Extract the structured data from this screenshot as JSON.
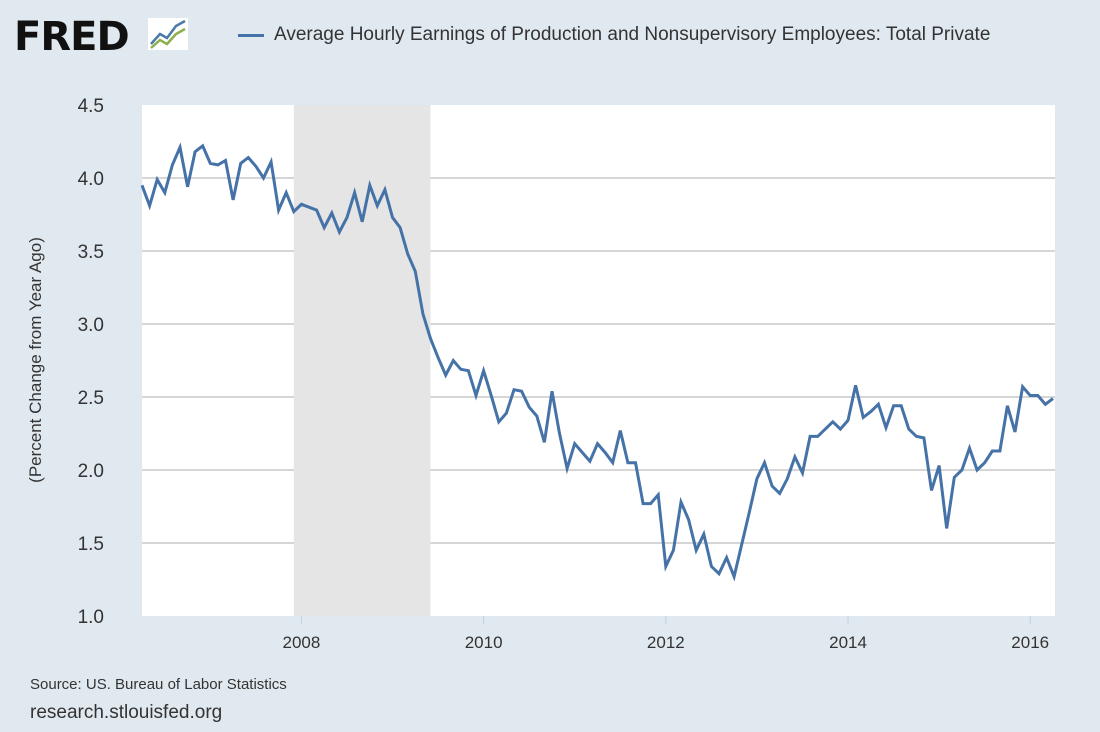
{
  "header": {
    "logo_text": "FRED",
    "logo_icon": "line-chart-icon"
  },
  "chart_data": {
    "type": "line",
    "title": "",
    "legend": [
      {
        "name": "Average Hourly Earnings of Production and Nonsupervisory Employees: Total Private",
        "color": "#4572a7"
      }
    ],
    "legend_placement": "top",
    "xlabel": "",
    "ylabel": "(Percent Change from Year Ago)",
    "ylim": [
      1.0,
      4.5
    ],
    "xlim": [
      "2006-04",
      "2016-04"
    ],
    "grid": true,
    "y_ticks": [
      "1.0",
      "1.5",
      "2.0",
      "2.5",
      "3.0",
      "3.5",
      "4.0",
      "4.5"
    ],
    "x_ticks": [
      "2008",
      "2010",
      "2012",
      "2014",
      "2016"
    ],
    "recession_shading": [
      {
        "start": "2007-12",
        "end": "2009-06",
        "color": "#e5e5e5"
      }
    ],
    "series": [
      {
        "name": "Average Hourly Earnings of Production and Nonsupervisory Employees: Total Private",
        "color": "#4572a7",
        "start": "2006-04",
        "frequency": "monthly",
        "values": [
          3.95,
          3.81,
          3.99,
          3.9,
          4.09,
          4.21,
          3.94,
          4.18,
          4.22,
          4.1,
          4.09,
          4.12,
          3.85,
          4.1,
          4.14,
          4.08,
          4.0,
          4.11,
          3.78,
          3.9,
          3.77,
          3.82,
          3.8,
          3.78,
          3.66,
          3.76,
          3.63,
          3.73,
          3.9,
          3.7,
          3.95,
          3.81,
          3.92,
          3.73,
          3.66,
          3.48,
          3.36,
          3.07,
          2.9,
          2.77,
          2.65,
          2.75,
          2.69,
          2.68,
          2.51,
          2.68,
          2.51,
          2.33,
          2.39,
          2.55,
          2.54,
          2.43,
          2.37,
          2.19,
          2.54,
          2.25,
          2.01,
          2.18,
          2.12,
          2.06,
          2.18,
          2.12,
          2.05,
          2.27,
          2.05,
          2.05,
          1.77,
          1.77,
          1.83,
          1.34,
          1.45,
          1.78,
          1.66,
          1.45,
          1.56,
          1.34,
          1.29,
          1.4,
          1.27,
          1.49,
          1.71,
          1.94,
          2.05,
          1.89,
          1.84,
          1.94,
          2.09,
          1.98,
          2.23,
          2.23,
          2.28,
          2.33,
          2.28,
          2.34,
          2.58,
          2.36,
          2.4,
          2.45,
          2.29,
          2.44,
          2.44,
          2.28,
          2.23,
          2.22,
          1.86,
          2.03,
          1.6,
          1.95,
          2.0,
          2.15,
          2.0,
          2.05,
          2.13,
          2.13,
          2.44,
          2.26,
          2.57,
          2.51,
          2.51,
          2.45,
          2.49
        ]
      }
    ]
  },
  "footer": {
    "source": "Source: US. Bureau of Labor Statistics",
    "site": "research.stlouisfed.org"
  }
}
